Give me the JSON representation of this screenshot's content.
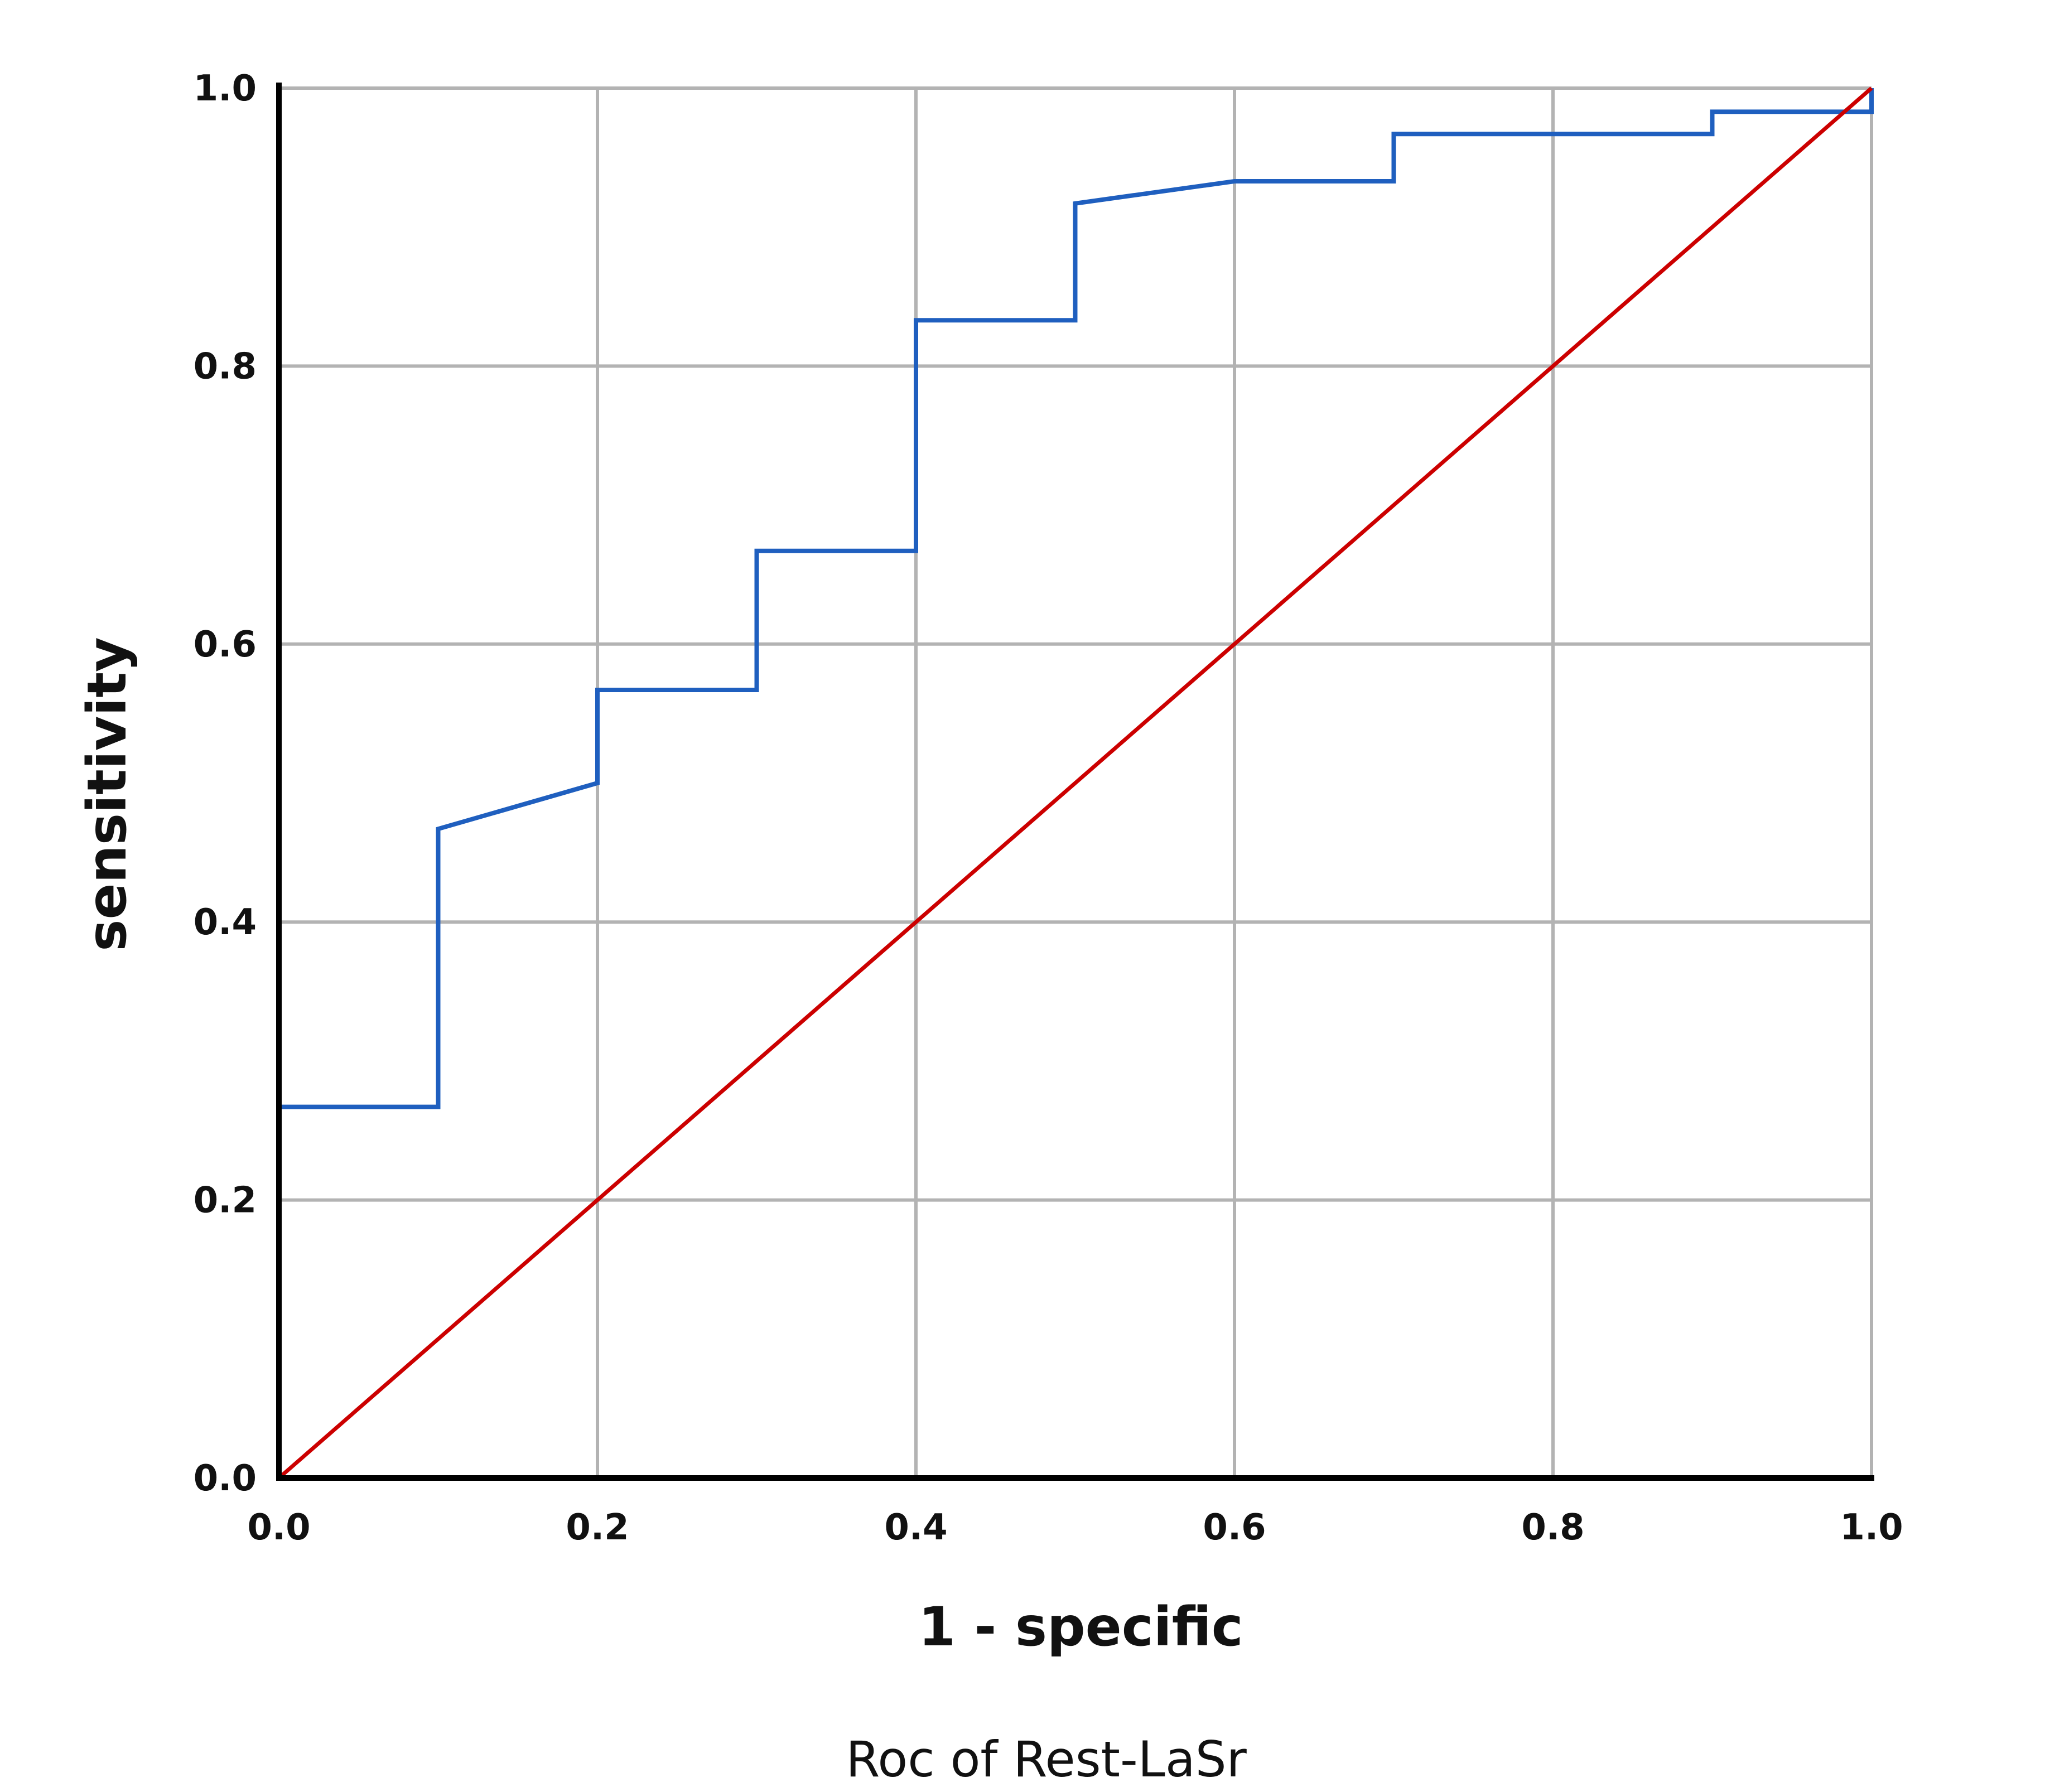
{
  "chart_data": {
    "type": "line",
    "title": "",
    "caption": "Roc of Rest-LaSr",
    "xlabel": "1 - specific",
    "ylabel": "sensitivity",
    "xlim": [
      0.0,
      1.0
    ],
    "ylim": [
      0.0,
      1.0
    ],
    "x_ticks": [
      "0.0",
      "0.2",
      "0.4",
      "0.6",
      "0.8",
      "1.0"
    ],
    "y_ticks": [
      "0.0",
      "0.2",
      "0.4",
      "0.6",
      "0.8",
      "1.0"
    ],
    "grid": true,
    "legend": "none",
    "series": [
      {
        "color": "#1f5fbf",
        "style": "step",
        "points": [
          [
            0.0,
            0.0
          ],
          [
            0.0,
            0.267
          ],
          [
            0.1,
            0.267
          ],
          [
            0.1,
            0.467
          ],
          [
            0.2,
            0.5
          ],
          [
            0.2,
            0.567
          ],
          [
            0.3,
            0.567
          ],
          [
            0.3,
            0.667
          ],
          [
            0.4,
            0.667
          ],
          [
            0.4,
            0.833
          ],
          [
            0.5,
            0.833
          ],
          [
            0.5,
            0.917
          ],
          [
            0.6,
            0.933
          ],
          [
            0.7,
            0.933
          ],
          [
            0.7,
            0.967
          ],
          [
            0.9,
            0.967
          ],
          [
            0.9,
            0.983
          ],
          [
            1.0,
            0.983
          ],
          [
            1.0,
            1.0
          ]
        ]
      },
      {
        "color": "#cc0000",
        "style": "reference",
        "points": [
          [
            0.0,
            0.0
          ],
          [
            1.0,
            1.0
          ]
        ]
      }
    ]
  }
}
